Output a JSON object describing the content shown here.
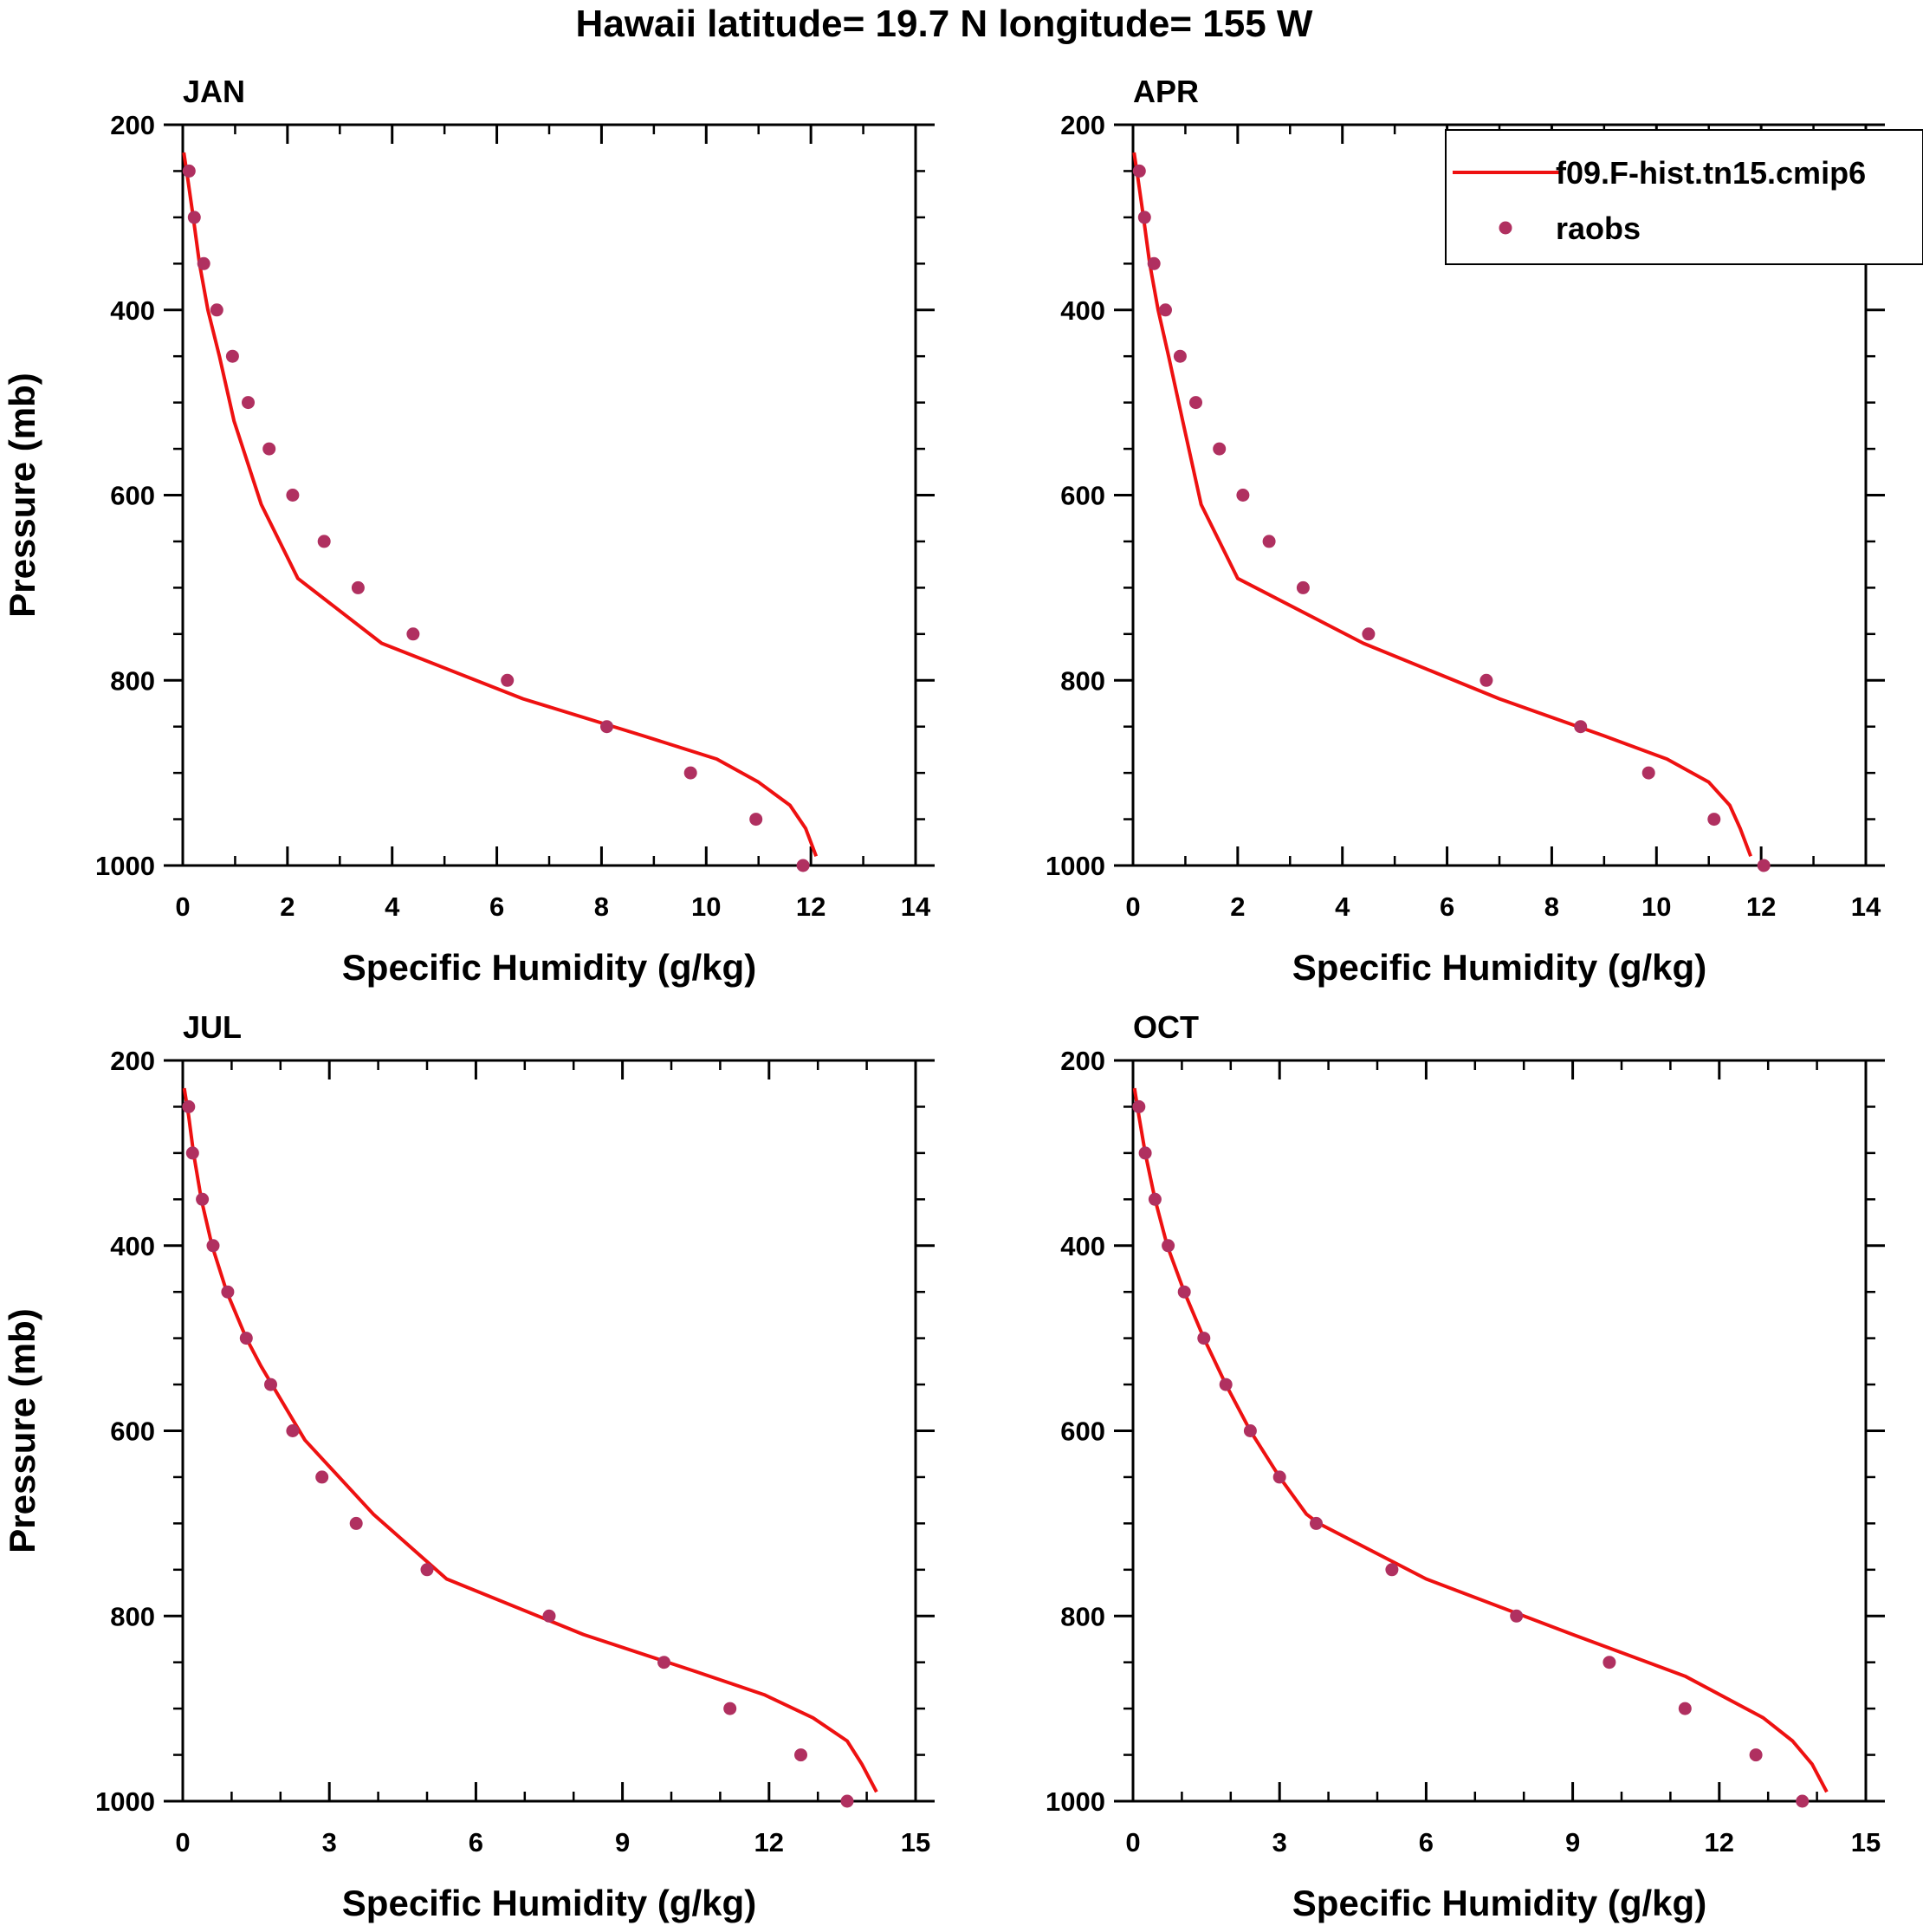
{
  "title": "Hawaii  latitude= 19.7 N longitude= 155 W",
  "legend": {
    "model_label": "f09.F-hist.tn15.cmip6",
    "obs_label": "raobs"
  },
  "colors": {
    "model": "#ee1111",
    "obs": "#b03060",
    "axes": "#000000"
  },
  "chart_data": [
    {
      "type": "line",
      "panel": "JAN",
      "xlabel": "Specific Humidity (g/kg)",
      "ylabel": "Pressure (mb)",
      "xlim": [
        0,
        14
      ],
      "xticks": [
        0,
        2,
        4,
        6,
        8,
        10,
        12,
        14
      ],
      "ylim": [
        1000,
        200
      ],
      "yticks": [
        200,
        400,
        600,
        800,
        1000
      ],
      "grid": false,
      "legend_shown": false,
      "series": [
        {
          "name": "f09.F-hist.tn15.cmip6",
          "style": "line",
          "x": [
            0.02,
            0.1,
            0.2,
            0.32,
            0.48,
            0.7,
            0.98,
            1.5,
            2.2,
            3.8,
            6.5,
            8.8,
            10.2,
            11.0,
            11.6,
            11.9,
            12.1
          ],
          "y": [
            230,
            260,
            300,
            350,
            400,
            450,
            520,
            610,
            690,
            760,
            820,
            860,
            885,
            910,
            935,
            960,
            990
          ]
        },
        {
          "name": "raobs",
          "style": "markers",
          "x": [
            0.12,
            0.22,
            0.4,
            0.65,
            0.95,
            1.25,
            1.65,
            2.1,
            2.7,
            3.35,
            4.4,
            6.2,
            8.1,
            9.7,
            10.95,
            11.85
          ],
          "y": [
            250,
            300,
            350,
            400,
            450,
            500,
            550,
            600,
            650,
            700,
            750,
            800,
            850,
            900,
            950,
            1000
          ]
        }
      ]
    },
    {
      "type": "line",
      "panel": "APR",
      "xlabel": "Specific Humidity (g/kg)",
      "ylabel": "",
      "xlim": [
        0,
        14
      ],
      "xticks": [
        0,
        2,
        4,
        6,
        8,
        10,
        12,
        14
      ],
      "ylim": [
        1000,
        200
      ],
      "yticks": [
        200,
        400,
        600,
        800,
        1000
      ],
      "grid": false,
      "legend_shown": true,
      "series": [
        {
          "name": "f09.F-hist.tn15.cmip6",
          "style": "line",
          "x": [
            0.02,
            0.1,
            0.2,
            0.32,
            0.48,
            0.68,
            0.95,
            1.3,
            2.0,
            4.4,
            7.0,
            9.0,
            10.2,
            11.0,
            11.4,
            11.6,
            11.8
          ],
          "y": [
            230,
            260,
            300,
            350,
            400,
            450,
            520,
            610,
            690,
            760,
            820,
            860,
            885,
            910,
            935,
            960,
            990
          ]
        },
        {
          "name": "raobs",
          "style": "markers",
          "x": [
            0.12,
            0.22,
            0.4,
            0.62,
            0.9,
            1.2,
            1.65,
            2.1,
            2.6,
            3.25,
            4.5,
            6.75,
            8.55,
            9.85,
            11.1,
            12.05
          ],
          "y": [
            250,
            300,
            350,
            400,
            450,
            500,
            550,
            600,
            650,
            700,
            750,
            800,
            850,
            900,
            950,
            1000
          ]
        }
      ]
    },
    {
      "type": "line",
      "panel": "JUL",
      "xlabel": "Specific Humidity (g/kg)",
      "ylabel": "Pressure (mb)",
      "xlim": [
        0,
        15
      ],
      "xticks": [
        0,
        3,
        6,
        9,
        12,
        15
      ],
      "ylim": [
        1000,
        200
      ],
      "yticks": [
        200,
        400,
        600,
        800,
        1000
      ],
      "grid": false,
      "legend_shown": false,
      "series": [
        {
          "name": "f09.F-hist.tn15.cmip6",
          "style": "line",
          "x": [
            0.03,
            0.12,
            0.22,
            0.38,
            0.6,
            0.9,
            1.3,
            1.6,
            2.5,
            3.9,
            5.4,
            8.2,
            10.5,
            11.9,
            12.9,
            13.6,
            13.9,
            14.2
          ],
          "y": [
            230,
            260,
            300,
            350,
            400,
            450,
            500,
            530,
            610,
            690,
            760,
            820,
            860,
            885,
            910,
            935,
            960,
            990
          ]
        },
        {
          "name": "raobs",
          "style": "markers",
          "x": [
            0.12,
            0.2,
            0.4,
            0.62,
            0.92,
            1.3,
            1.8,
            2.25,
            2.85,
            3.55,
            5.0,
            7.5,
            9.85,
            11.2,
            12.65,
            13.6
          ],
          "y": [
            250,
            300,
            350,
            400,
            450,
            500,
            550,
            600,
            650,
            700,
            750,
            800,
            850,
            900,
            950,
            1000
          ]
        }
      ]
    },
    {
      "type": "line",
      "panel": "OCT",
      "xlabel": "Specific Humidity (g/kg)",
      "ylabel": "",
      "xlim": [
        0,
        15
      ],
      "xticks": [
        0,
        3,
        6,
        9,
        12,
        15
      ],
      "ylim": [
        1000,
        200
      ],
      "yticks": [
        200,
        400,
        600,
        800,
        1000
      ],
      "grid": false,
      "legend_shown": false,
      "series": [
        {
          "name": "f09.F-hist.tn15.cmip6",
          "style": "line",
          "x": [
            0.03,
            0.12,
            0.25,
            0.45,
            0.7,
            1.05,
            1.45,
            1.9,
            2.4,
            3.0,
            3.55,
            3.8,
            6.0,
            9.0,
            11.3,
            12.9,
            13.5,
            13.9,
            14.2
          ],
          "y": [
            230,
            260,
            300,
            350,
            400,
            450,
            500,
            550,
            600,
            650,
            690,
            700,
            760,
            820,
            865,
            910,
            935,
            960,
            990
          ]
        },
        {
          "name": "raobs",
          "style": "markers",
          "x": [
            0.12,
            0.25,
            0.45,
            0.72,
            1.05,
            1.45,
            1.9,
            2.4,
            3.0,
            3.75,
            5.3,
            7.85,
            9.75,
            11.3,
            12.75,
            13.7
          ],
          "y": [
            250,
            300,
            350,
            400,
            450,
            500,
            550,
            600,
            650,
            700,
            750,
            800,
            850,
            900,
            950,
            1000
          ]
        }
      ]
    }
  ]
}
